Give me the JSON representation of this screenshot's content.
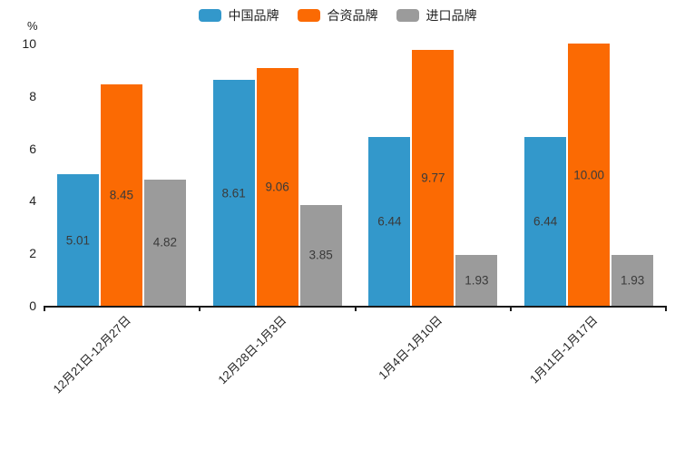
{
  "chart_data": {
    "type": "bar",
    "title": "",
    "xlabel": "",
    "ylabel": "%",
    "ylim": [
      0,
      10
    ],
    "yticks": [
      0,
      2,
      4,
      6,
      8,
      10
    ],
    "grid": false,
    "legend_position": "top-center",
    "value_label_decimals": 2,
    "categories": [
      "12月21日-12月27日",
      "12月28日-1月3日",
      "1月4日-1月10日",
      "1月11日-1月17日"
    ],
    "series": [
      {
        "name": "中国品牌",
        "color": "#3398cb",
        "values": [
          5.01,
          8.61,
          6.44,
          6.44
        ]
      },
      {
        "name": "合资品牌",
        "color": "#fb6a03",
        "values": [
          8.45,
          9.06,
          9.77,
          10.0
        ]
      },
      {
        "name": "进口品牌",
        "color": "#9b9b9b",
        "values": [
          4.82,
          3.85,
          1.93,
          1.93
        ]
      }
    ],
    "axis_color": "#1a1a1a",
    "text_color": "#222222",
    "value_label_color": "#3a3a3a"
  }
}
